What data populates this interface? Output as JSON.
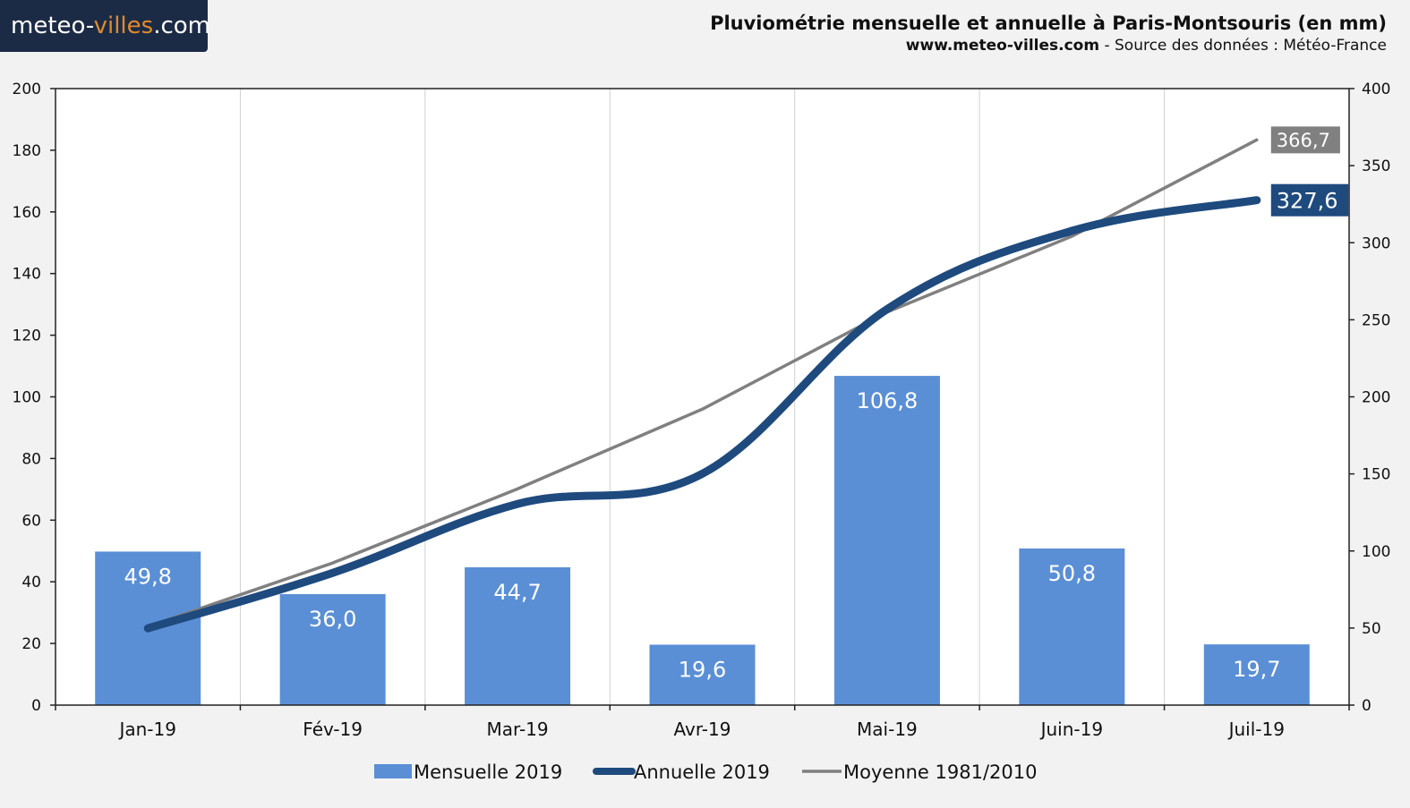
{
  "header": {
    "logo_main": "meteo-",
    "logo_accent": "villes",
    "logo_tld": ".com",
    "title": "Pluviométrie mensuelle et annuelle à Paris-Montsouris (en mm)",
    "site": "www.meteo-villes.com",
    "source": " - Source des données : Météo-France"
  },
  "colors": {
    "bar": "#5a8fd6",
    "annual": "#1e4a7e",
    "average": "#808080",
    "grid": "#d0d0d0",
    "axis": "#222222"
  },
  "chart_data": {
    "type": "bar",
    "categories": [
      "Jan-19",
      "Fév-19",
      "Mar-19",
      "Avr-19",
      "Mai-19",
      "Juin-19",
      "Juil-19"
    ],
    "series": [
      {
        "name": "Mensuelle 2019",
        "kind": "bar",
        "axis": "left",
        "values": [
          49.8,
          36.0,
          44.7,
          19.6,
          106.8,
          50.8,
          19.7
        ],
        "labels": [
          "49,8",
          "36,0",
          "44,7",
          "19,6",
          "106,8",
          "50,8",
          "19,7"
        ]
      },
      {
        "name": "Annuelle 2019",
        "kind": "line",
        "axis": "right",
        "values": [
          49.8,
          85.8,
          130.5,
          150.1,
          256.9,
          307.7,
          327.6
        ],
        "end_label": "327,6"
      },
      {
        "name": "Moyenne 1981/2010",
        "kind": "line",
        "axis": "right",
        "values": [
          51.0,
          92.2,
          140.3,
          192.0,
          255.0,
          304.2,
          366.7
        ],
        "end_label": "366,7"
      }
    ],
    "ylim_left": [
      0,
      200
    ],
    "yticks_left": [
      "0",
      "20",
      "40",
      "60",
      "80",
      "100",
      "120",
      "140",
      "160",
      "180",
      "200"
    ],
    "ylim_right": [
      0,
      400
    ],
    "yticks_right": [
      "0",
      "50",
      "100",
      "150",
      "200",
      "250",
      "300",
      "350",
      "400"
    ],
    "legend": [
      "Mensuelle 2019",
      "Annuelle 2019",
      "Moyenne 1981/2010"
    ],
    "legend_position": "bottom"
  }
}
